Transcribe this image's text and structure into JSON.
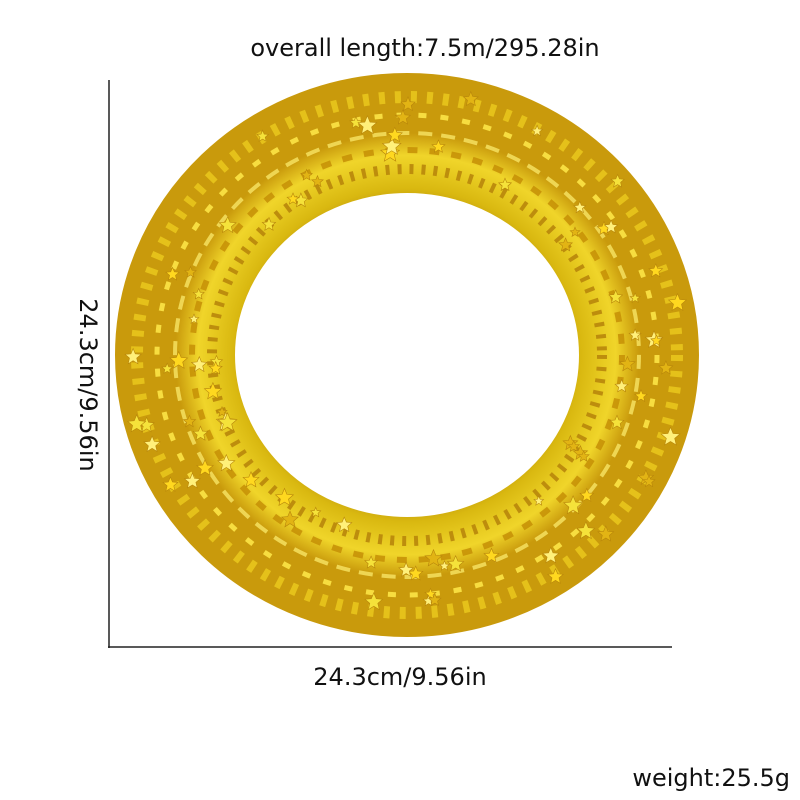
{
  "product": {
    "overall_length": "overall length:7.5m/295.28in",
    "width": "24.3cm/9.56in",
    "height": "24.3cm/9.56in",
    "weight": "weight:25.5g"
  },
  "colors": {
    "background": "#ffffff",
    "text": "#111111",
    "axis": "#222222",
    "tinsel_light": "#f5e23a",
    "tinsel_mid": "#d9b810",
    "tinsel_dark": "#a8780a"
  },
  "icons": {
    "wreath": "gold-star-tinsel-wreath-icon"
  }
}
